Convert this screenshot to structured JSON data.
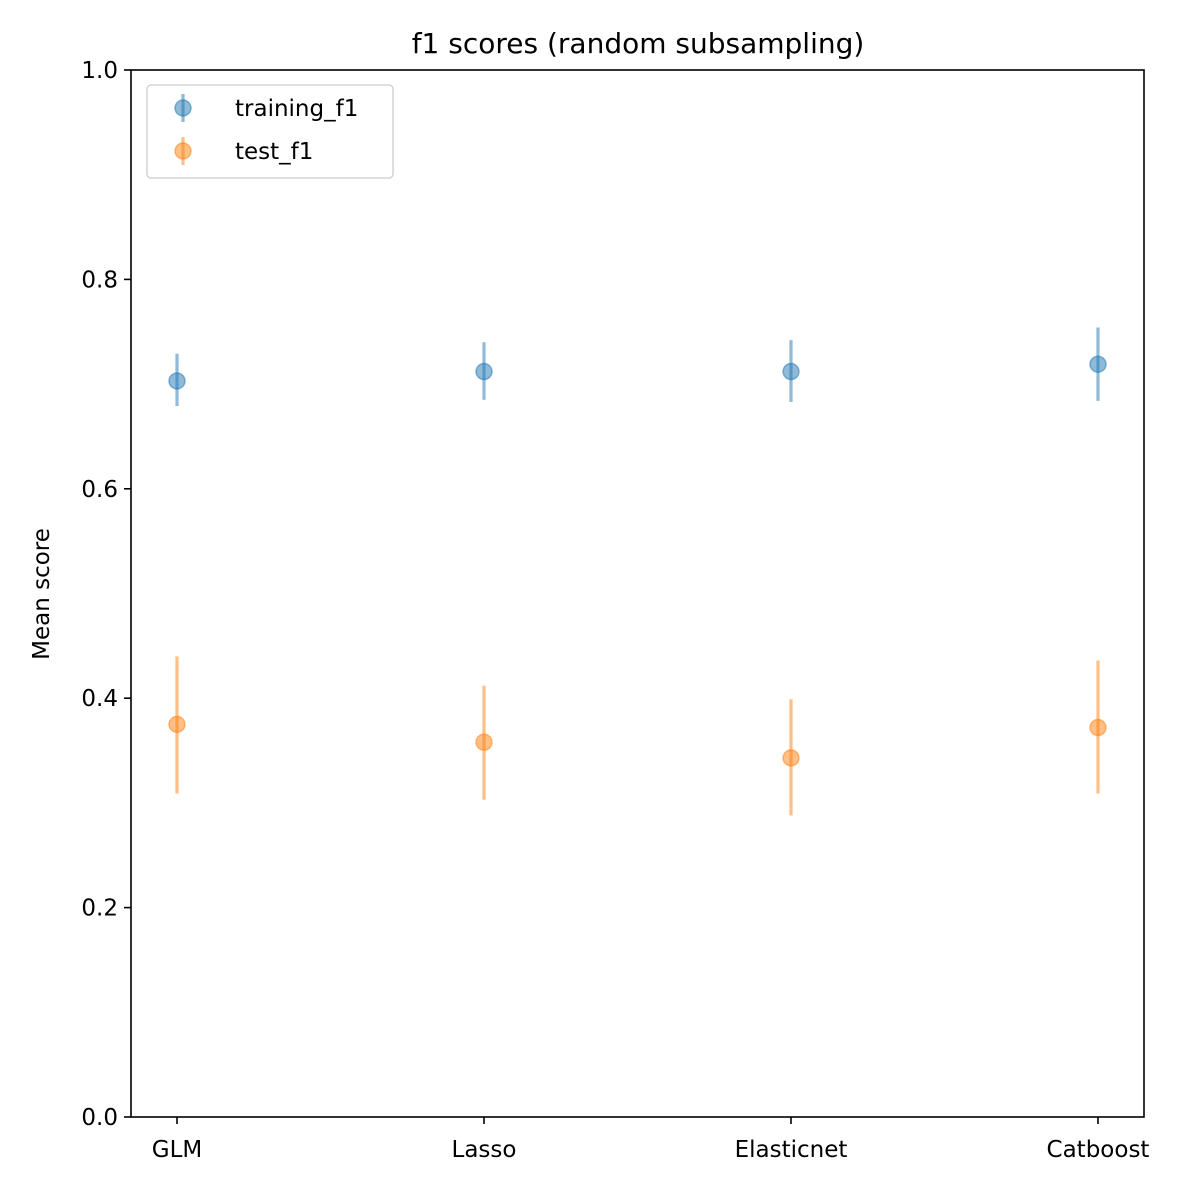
{
  "chart_data": {
    "type": "scatter",
    "title": "f1 scores (random subsampling)",
    "xlabel": "",
    "ylabel": "Mean score",
    "ylim": [
      0,
      1
    ],
    "yticks": [
      "0.0",
      "0.2",
      "0.4",
      "0.6",
      "0.8",
      "1.0"
    ],
    "categories": [
      "GLM",
      "Lasso",
      "Elasticnet",
      "Catboost"
    ],
    "legend_position": "top-left",
    "grid": false,
    "series": [
      {
        "name": "training_f1",
        "color": "#1f77b4",
        "values": [
          0.703,
          0.712,
          0.712,
          0.719
        ],
        "err_low": [
          0.679,
          0.685,
          0.683,
          0.684
        ],
        "err_high": [
          0.729,
          0.74,
          0.742,
          0.754
        ]
      },
      {
        "name": "test_f1",
        "color": "#ff7f0e",
        "values": [
          0.375,
          0.358,
          0.343,
          0.372
        ],
        "err_low": [
          0.309,
          0.303,
          0.288,
          0.309
        ],
        "err_high": [
          0.44,
          0.412,
          0.399,
          0.436
        ]
      }
    ]
  }
}
